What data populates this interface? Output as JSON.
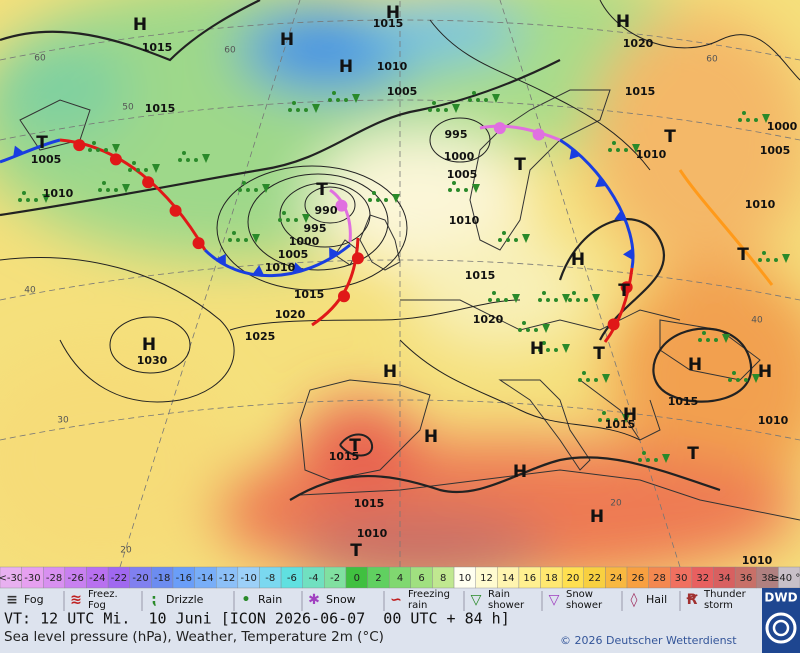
{
  "map": {
    "pressure_labels": [
      1015,
      1015,
      1010,
      1005,
      1015,
      1005,
      1010,
      995,
      1000,
      1005,
      990,
      995,
      1000,
      1005,
      1010,
      1015,
      1020,
      1025,
      1030,
      1010,
      1015,
      1020,
      1020,
      1015,
      1010,
      1000,
      1005,
      1010,
      1015,
      1015,
      1010,
      1015,
      1015,
      1010,
      1010
    ],
    "centers": [
      "H",
      "H",
      "H",
      "H",
      "H",
      "T",
      "T",
      "H",
      "H",
      "H",
      "H",
      "H",
      "T",
      "H",
      "H",
      "T",
      "H",
      "H",
      "H",
      "T",
      "T",
      "T",
      "T",
      "T",
      "T"
    ],
    "grid_labels": [
      60,
      60,
      50,
      40,
      30,
      20,
      60,
      40,
      20
    ]
  },
  "temperature_scale": {
    "labels": [
      "<-30",
      -30,
      -28,
      -26,
      -24,
      -22,
      -20,
      -18,
      -16,
      -14,
      -12,
      -10,
      -8,
      -6,
      -4,
      -2,
      0,
      2,
      4,
      6,
      8,
      10,
      12,
      14,
      16,
      18,
      20,
      22,
      24,
      26,
      28,
      30,
      32,
      34,
      36,
      38,
      "≥40 °C"
    ],
    "colors": [
      "#e8b0f0",
      "#e6a0f0",
      "#d890f0",
      "#c880f0",
      "#b870f0",
      "#a068f0",
      "#8080f0",
      "#6c8cf0",
      "#6a9ef8",
      "#78aef8",
      "#8cc0f8",
      "#9cd0f8",
      "#7ad8f0",
      "#60e0e0",
      "#70e0c0",
      "#80e0a0",
      "#40c040",
      "#60d060",
      "#80d870",
      "#a0e080",
      "#c0e890",
      "#fffff0",
      "#fffbd0",
      "#fff5b0",
      "#fff090",
      "#ffe870",
      "#ffe050",
      "#f8d040",
      "#f8b840",
      "#f8a040",
      "#f48850",
      "#f07060",
      "#e86060",
      "#d86060",
      "#c87068",
      "#b08080",
      "#c8c0c8"
    ]
  },
  "weather_legend": [
    {
      "lines": [
        "Fog"
      ]
    },
    {
      "lines": [
        "Freez.",
        "Fog"
      ]
    },
    {
      "lines": [
        "Drizzle"
      ]
    },
    {
      "lines": [
        "Rain"
      ]
    },
    {
      "lines": [
        "Snow"
      ]
    },
    {
      "lines": [
        "Freezing",
        "rain"
      ]
    },
    {
      "lines": [
        "Rain",
        "shower"
      ]
    },
    {
      "lines": [
        "Snow",
        "shower"
      ]
    },
    {
      "lines": [
        "Hail"
      ]
    },
    {
      "lines": [
        "Thunder",
        "storm"
      ]
    }
  ],
  "footer": {
    "valid_time": "VT: 12 UTC Mi.  10 Juni [ICON 2026-06-07  00 UTC + 84 h]",
    "description": "Sea level pressure (hPa), Weather, Temperature 2m (°C)",
    "copyright": "© 2026 Deutscher Wetterdienst",
    "logo": "DWD"
  }
}
